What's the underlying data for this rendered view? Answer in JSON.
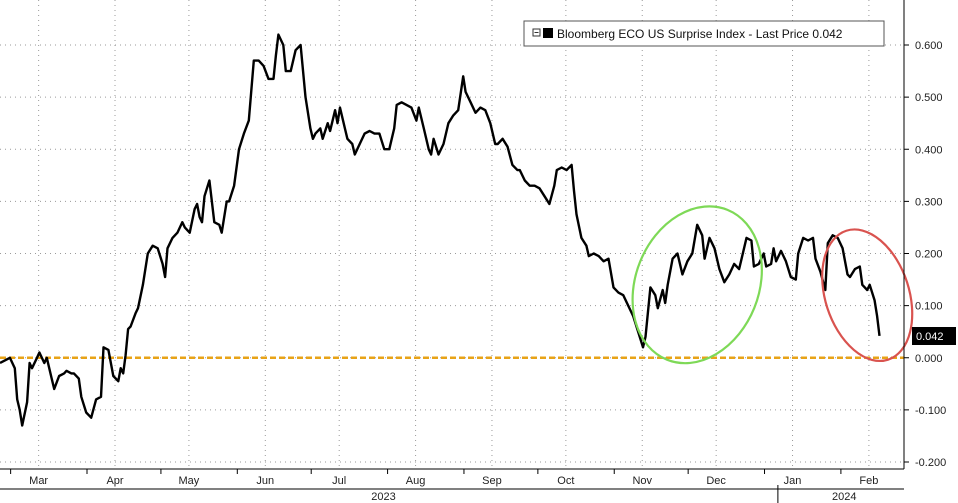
{
  "chart_data": {
    "type": "line",
    "title": "",
    "xlabel": "",
    "ylabel": "",
    "legend": {
      "label": "Bloomberg ECO US Surprise Index - Last Price 0.042",
      "position": "top-right",
      "color": "#000000"
    },
    "last_price_label": "0.042",
    "y_axis": {
      "position": "right",
      "ylim": [
        -0.21,
        0.66
      ],
      "ticks": [
        -0.2,
        -0.1,
        0.0,
        0.1,
        0.2,
        0.3,
        0.4,
        0.5,
        0.6
      ],
      "tick_labels": [
        "-0.200",
        "-0.100",
        "0.000",
        "0.100",
        "0.200",
        "0.300",
        "0.400",
        "0.500",
        "0.600"
      ]
    },
    "x_axis": {
      "month_labels": [
        {
          "label": "Mar",
          "day": 10
        },
        {
          "label": "Apr",
          "day": 41
        },
        {
          "label": "May",
          "day": 71
        },
        {
          "label": "Jun",
          "day": 102
        },
        {
          "label": "Jul",
          "day": 132
        },
        {
          "label": "Aug",
          "day": 163
        },
        {
          "label": "Sep",
          "day": 194
        },
        {
          "label": "Oct",
          "day": 224
        },
        {
          "label": "Nov",
          "day": 255
        },
        {
          "label": "Dec",
          "day": 285
        },
        {
          "label": "Jan",
          "day": 316
        },
        {
          "label": "Feb",
          "day": 347
        }
      ],
      "year_labels": [
        {
          "label": "2023",
          "day": 150
        },
        {
          "label": "2024",
          "day": 337
        }
      ],
      "xlim": [
        0,
        366
      ]
    },
    "grid": true,
    "reference_line": {
      "y": 0.0,
      "color": "#E8A317",
      "style": "dashed"
    },
    "annotations": [
      {
        "type": "ellipse",
        "color": "#7ED957",
        "center_day": 283,
        "center_value": 0.14,
        "day_radius": 25,
        "value_radius": 0.155,
        "angle": 22
      },
      {
        "type": "ellipse",
        "color": "#D9534F",
        "center_day": 352,
        "center_value": 0.12,
        "day_radius": 17,
        "value_radius": 0.13,
        "angle": -18
      }
    ],
    "series": [
      {
        "name": "Bloomberg ECO US Surprise Index",
        "color": "#000000",
        "points": [
          [
            0,
            -0.01
          ],
          [
            2,
            -0.005
          ],
          [
            4,
            0.0
          ],
          [
            6,
            -0.02
          ],
          [
            7,
            -0.08
          ],
          [
            8,
            -0.1
          ],
          [
            9,
            -0.13
          ],
          [
            11,
            -0.085
          ],
          [
            12,
            -0.01
          ],
          [
            13,
            -0.02
          ],
          [
            15,
            0.0
          ],
          [
            16,
            0.01
          ],
          [
            18,
            -0.01
          ],
          [
            19,
            0.0
          ],
          [
            21,
            -0.04
          ],
          [
            22,
            -0.06
          ],
          [
            24,
            -0.035
          ],
          [
            26,
            -0.03
          ],
          [
            27,
            -0.025
          ],
          [
            29,
            -0.03
          ],
          [
            30,
            -0.03
          ],
          [
            32,
            -0.04
          ],
          [
            33,
            -0.075
          ],
          [
            35,
            -0.105
          ],
          [
            37,
            -0.115
          ],
          [
            39,
            -0.08
          ],
          [
            41,
            -0.075
          ],
          [
            42,
            0.02
          ],
          [
            44,
            0.015
          ],
          [
            46,
            -0.035
          ],
          [
            48,
            -0.045
          ],
          [
            49,
            -0.02
          ],
          [
            50,
            -0.03
          ],
          [
            51,
            0.005
          ],
          [
            52,
            0.055
          ],
          [
            53,
            0.06
          ],
          [
            55,
            0.085
          ],
          [
            56,
            0.095
          ],
          [
            58,
            0.14
          ],
          [
            60,
            0.2
          ],
          [
            62,
            0.215
          ],
          [
            64,
            0.21
          ],
          [
            66,
            0.18
          ],
          [
            67,
            0.155
          ],
          [
            68,
            0.21
          ],
          [
            70,
            0.23
          ],
          [
            72,
            0.24
          ],
          [
            74,
            0.26
          ],
          [
            75,
            0.25
          ],
          [
            77,
            0.24
          ],
          [
            79,
            0.285
          ],
          [
            80,
            0.295
          ],
          [
            81,
            0.27
          ],
          [
            82,
            0.26
          ],
          [
            83,
            0.31
          ],
          [
            85,
            0.34
          ],
          [
            87,
            0.26
          ],
          [
            89,
            0.255
          ],
          [
            90,
            0.24
          ],
          [
            92,
            0.3
          ],
          [
            93,
            0.3
          ],
          [
            95,
            0.33
          ],
          [
            97,
            0.4
          ],
          [
            99,
            0.43
          ],
          [
            101,
            0.455
          ],
          [
            103,
            0.57
          ],
          [
            105,
            0.57
          ],
          [
            107,
            0.56
          ],
          [
            109,
            0.535
          ],
          [
            111,
            0.535
          ],
          [
            112,
            0.58
          ],
          [
            113,
            0.62
          ],
          [
            115,
            0.6
          ],
          [
            116,
            0.55
          ],
          [
            118,
            0.55
          ],
          [
            120,
            0.59
          ],
          [
            122,
            0.6
          ],
          [
            124,
            0.5
          ],
          [
            126,
            0.44
          ],
          [
            127,
            0.42
          ],
          [
            128,
            0.43
          ],
          [
            130,
            0.44
          ],
          [
            131,
            0.42
          ],
          [
            133,
            0.45
          ],
          [
            134,
            0.435
          ],
          [
            136,
            0.475
          ],
          [
            137,
            0.45
          ],
          [
            138,
            0.48
          ],
          [
            140,
            0.44
          ],
          [
            141,
            0.42
          ],
          [
            143,
            0.41
          ],
          [
            144,
            0.39
          ],
          [
            146,
            0.41
          ],
          [
            148,
            0.43
          ],
          [
            150,
            0.435
          ],
          [
            152,
            0.43
          ],
          [
            154,
            0.43
          ],
          [
            156,
            0.4
          ],
          [
            158,
            0.4
          ],
          [
            160,
            0.44
          ],
          [
            161,
            0.485
          ],
          [
            163,
            0.49
          ],
          [
            165,
            0.485
          ],
          [
            167,
            0.48
          ],
          [
            169,
            0.455
          ],
          [
            170,
            0.48
          ],
          [
            172,
            0.44
          ],
          [
            174,
            0.4
          ],
          [
            175,
            0.39
          ],
          [
            176,
            0.42
          ],
          [
            178,
            0.39
          ],
          [
            180,
            0.41
          ],
          [
            182,
            0.45
          ],
          [
            184,
            0.465
          ],
          [
            186,
            0.475
          ],
          [
            188,
            0.54
          ],
          [
            189,
            0.51
          ],
          [
            191,
            0.49
          ],
          [
            193,
            0.47
          ],
          [
            195,
            0.48
          ],
          [
            197,
            0.475
          ],
          [
            199,
            0.45
          ],
          [
            201,
            0.41
          ],
          [
            202,
            0.41
          ],
          [
            204,
            0.42
          ],
          [
            206,
            0.405
          ],
          [
            208,
            0.37
          ],
          [
            210,
            0.36
          ],
          [
            211,
            0.36
          ],
          [
            213,
            0.34
          ],
          [
            215,
            0.33
          ],
          [
            217,
            0.33
          ],
          [
            219,
            0.325
          ],
          [
            221,
            0.31
          ],
          [
            223,
            0.295
          ],
          [
            225,
            0.33
          ],
          [
            226,
            0.36
          ],
          [
            228,
            0.365
          ],
          [
            230,
            0.36
          ],
          [
            232,
            0.37
          ],
          [
            233,
            0.32
          ],
          [
            234,
            0.275
          ],
          [
            236,
            0.23
          ],
          [
            238,
            0.215
          ],
          [
            239,
            0.195
          ],
          [
            241,
            0.2
          ],
          [
            243,
            0.195
          ],
          [
            245,
            0.185
          ],
          [
            247,
            0.19
          ],
          [
            249,
            0.135
          ],
          [
            251,
            0.125
          ],
          [
            253,
            0.12
          ],
          [
            255,
            0.1
          ],
          [
            257,
            0.08
          ],
          [
            259,
            0.05
          ],
          [
            261,
            0.02
          ],
          [
            262,
            0.04
          ],
          [
            264,
            0.135
          ],
          [
            266,
            0.12
          ],
          [
            267,
            0.095
          ],
          [
            269,
            0.13
          ],
          [
            270,
            0.105
          ],
          [
            271,
            0.14
          ],
          [
            273,
            0.19
          ],
          [
            275,
            0.2
          ],
          [
            277,
            0.16
          ],
          [
            279,
            0.185
          ],
          [
            281,
            0.2
          ],
          [
            283,
            0.255
          ],
          [
            285,
            0.235
          ],
          [
            286,
            0.19
          ],
          [
            288,
            0.23
          ],
          [
            290,
            0.21
          ],
          [
            292,
            0.17
          ],
          [
            294,
            0.145
          ],
          [
            296,
            0.16
          ],
          [
            298,
            0.18
          ],
          [
            300,
            0.17
          ],
          [
            301,
            0.19
          ],
          [
            303,
            0.23
          ],
          [
            305,
            0.225
          ],
          [
            306,
            0.175
          ],
          [
            308,
            0.18
          ],
          [
            310,
            0.2
          ],
          [
            311,
            0.175
          ],
          [
            313,
            0.18
          ],
          [
            314,
            0.21
          ],
          [
            315,
            0.185
          ],
          [
            317,
            0.205
          ],
          [
            319,
            0.185
          ],
          [
            321,
            0.155
          ],
          [
            323,
            0.15
          ],
          [
            324,
            0.2
          ],
          [
            326,
            0.23
          ],
          [
            328,
            0.225
          ],
          [
            330,
            0.23
          ],
          [
            331,
            0.19
          ],
          [
            333,
            0.165
          ],
          [
            335,
            0.13
          ],
          [
            336,
            0.22
          ],
          [
            338,
            0.235
          ],
          [
            340,
            0.23
          ],
          [
            342,
            0.21
          ],
          [
            344,
            0.16
          ],
          [
            345,
            0.155
          ],
          [
            347,
            0.17
          ],
          [
            349,
            0.175
          ],
          [
            350,
            0.14
          ],
          [
            352,
            0.13
          ],
          [
            353,
            0.14
          ],
          [
            355,
            0.11
          ],
          [
            356,
            0.08
          ],
          [
            357,
            0.042
          ]
        ]
      }
    ]
  }
}
